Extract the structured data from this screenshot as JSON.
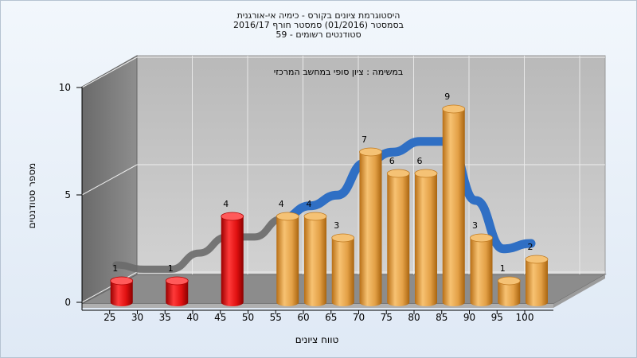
{
  "chart_data": {
    "type": "bar",
    "title_lines": [
      "היסטוגרמת ציונים בקורס - כימיה אי-אורגנית",
      "בסמסטר  (01/2016)  סמסטר חורף 2016/17",
      "סטודנטים רשומים - 59"
    ],
    "annotation": "במשימה : ציון סופי במחשב המרכזי",
    "xlabel": "טווח ציונים",
    "ylabel": "מספר סטודנטים",
    "ylim": [
      0,
      10
    ],
    "yticks": [
      "0",
      "5",
      "10"
    ],
    "categories": [
      "25",
      "30",
      "35",
      "40",
      "45",
      "50",
      "55",
      "60",
      "65",
      "70",
      "75",
      "80",
      "85",
      "90",
      "95",
      "100"
    ],
    "values": [
      1,
      0,
      1,
      0,
      4,
      0,
      4,
      4,
      3,
      7,
      6,
      6,
      9,
      3,
      1,
      2
    ],
    "failing_below": 55,
    "grid": true,
    "curve": "distribution",
    "colors": {
      "failing": "#e01010",
      "passing": "#e8a040",
      "curve": "#2f6fc4",
      "curve_failing": "#6a6a6a",
      "back_wall": "#c2c2c2",
      "side_wall": "#7a7a7a",
      "floor": "#8c8c8c"
    }
  }
}
